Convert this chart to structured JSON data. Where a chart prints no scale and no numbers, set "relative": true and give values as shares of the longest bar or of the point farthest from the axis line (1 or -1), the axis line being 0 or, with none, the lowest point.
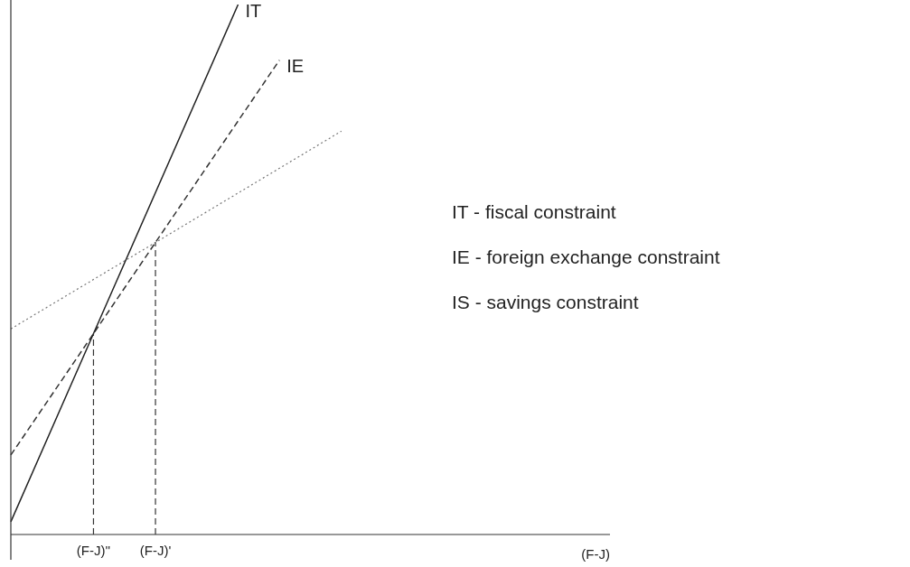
{
  "chart_data": {
    "type": "line",
    "relative": true,
    "xlabel": "(F-J)",
    "categories": [
      null,
      null,
      null,
      null,
      "(F-J)''",
      null,
      null,
      "(F-J)'",
      null,
      null,
      null,
      null,
      null,
      null,
      null,
      null,
      null,
      null,
      null,
      null,
      null,
      null,
      null,
      null,
      null,
      null,
      null,
      null,
      null,
      null
    ],
    "tick_labels": "x",
    "grid": false,
    "legend": false,
    "marker": "none",
    "series": [
      {
        "name": "IT",
        "color": "#222222",
        "line_style": "solid",
        "values": [
          0.024,
          null,
          null,
          null,
          0.379,
          null,
          null,
          null,
          null,
          null,
          null,
          1,
          null,
          null,
          null,
          null,
          null,
          null,
          null,
          null,
          null,
          null,
          null,
          null,
          null,
          null,
          null,
          null,
          null,
          null
        ]
      },
      {
        "name": "IE",
        "color": "#333333",
        "line_style": "dashed",
        "values": [
          0.15,
          null,
          null,
          null,
          0.379,
          null,
          null,
          0.551,
          null,
          null,
          null,
          null,
          null,
          0.895,
          null,
          null,
          null,
          null,
          null,
          null,
          null,
          null,
          null,
          null,
          null,
          null,
          null,
          null,
          null,
          null
        ]
      },
      {
        "color": "#777777",
        "line_style": "dotted",
        "values": [
          0.388,
          null,
          null,
          null,
          null,
          null,
          null,
          0.551,
          null,
          null,
          null,
          null,
          null,
          null,
          null,
          null,
          0.761,
          null,
          null,
          null,
          null,
          null,
          null,
          null,
          null,
          null,
          null,
          null,
          null,
          null
        ]
      }
    ],
    "ref_lines": [
      {
        "axis": "x",
        "value": "(F-J)''",
        "color": "#333333",
        "line_style": "dashed"
      },
      {
        "axis": "x",
        "value": "(F-J)'",
        "color": "#333333",
        "line_style": "dashed"
      }
    ],
    "annotations": [
      "IT - fiscal constraint",
      "IE - foreign exchange constraint",
      "IS - savings constraint"
    ]
  }
}
